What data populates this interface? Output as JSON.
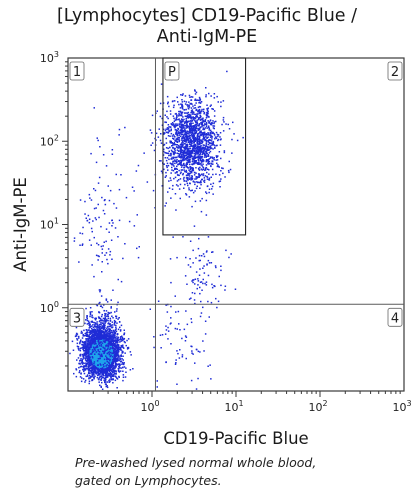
{
  "chart_data": {
    "type": "scatter",
    "title": "[Lymphocytes] CD19-Pacific Blue /",
    "subtitle": "Anti-IgM-PE",
    "xlabel": "CD19-Pacific Blue",
    "ylabel": "Anti-IgM-PE",
    "x_scale": "log",
    "y_scale": "log",
    "xlim": [
      0.1,
      1000
    ],
    "ylim": [
      0.1,
      1000
    ],
    "x_ticks": [
      {
        "value": 1,
        "base": "10",
        "exp": "0"
      },
      {
        "value": 10,
        "base": "10",
        "exp": "1"
      },
      {
        "value": 100,
        "base": "10",
        "exp": "2"
      },
      {
        "value": 1000,
        "base": "10",
        "exp": "3"
      }
    ],
    "y_ticks": [
      {
        "value": 1,
        "base": "10",
        "exp": "0"
      },
      {
        "value": 10,
        "base": "10",
        "exp": "1"
      },
      {
        "value": 100,
        "base": "10",
        "exp": "2"
      },
      {
        "value": 1000,
        "base": "10",
        "exp": "3"
      }
    ],
    "quadrant_divider": {
      "x": 1.1,
      "y": 1.1
    },
    "quadrants": [
      {
        "label": "1",
        "x": [
          0.1,
          1.1
        ],
        "y": [
          1.1,
          1000
        ]
      },
      {
        "label": "2",
        "x": [
          1.1,
          1000
        ],
        "y": [
          1.1,
          1000
        ]
      },
      {
        "label": "3",
        "x": [
          0.1,
          1.1
        ],
        "y": [
          0.1,
          1.1
        ]
      },
      {
        "label": "4",
        "x": [
          1.1,
          1000
        ],
        "y": [
          0.1,
          1.1
        ]
      }
    ],
    "gate": {
      "label": "P",
      "x": [
        1.35,
        13
      ],
      "y": [
        7.5,
        1000
      ]
    },
    "populations": [
      {
        "cx": 0.25,
        "cy": 0.28,
        "sx": 0.11,
        "sy": 0.14,
        "n": 3200
      },
      {
        "cx": 0.26,
        "cy": 0.45,
        "sx": 0.11,
        "sy": 0.22,
        "n": 450
      },
      {
        "cx": 3.0,
        "cy": 95,
        "sx": 0.16,
        "sy": 0.26,
        "n": 1700
      },
      {
        "cx": 4.0,
        "cy": 2.2,
        "sx": 0.13,
        "sy": 0.22,
        "n": 90
      },
      {
        "cx": 2.2,
        "cy": 0.45,
        "sx": 0.18,
        "sy": 0.3,
        "n": 75
      },
      {
        "cx": 0.25,
        "cy": 8,
        "sx": 0.16,
        "sy": 0.35,
        "n": 85
      },
      {
        "cx": 0.7,
        "cy": 40,
        "sx": 0.4,
        "sy": 0.55,
        "n": 45
      }
    ],
    "point_color": "#1f2cd6",
    "point_color_dense": "#1fa4ec"
  },
  "caption": {
    "line1": "Pre-washed lysed normal whole blood,",
    "line2": "gated on Lymphocytes."
  },
  "colors": {
    "axis": "#3a3a3a",
    "gridline": "#5a5a5a"
  }
}
